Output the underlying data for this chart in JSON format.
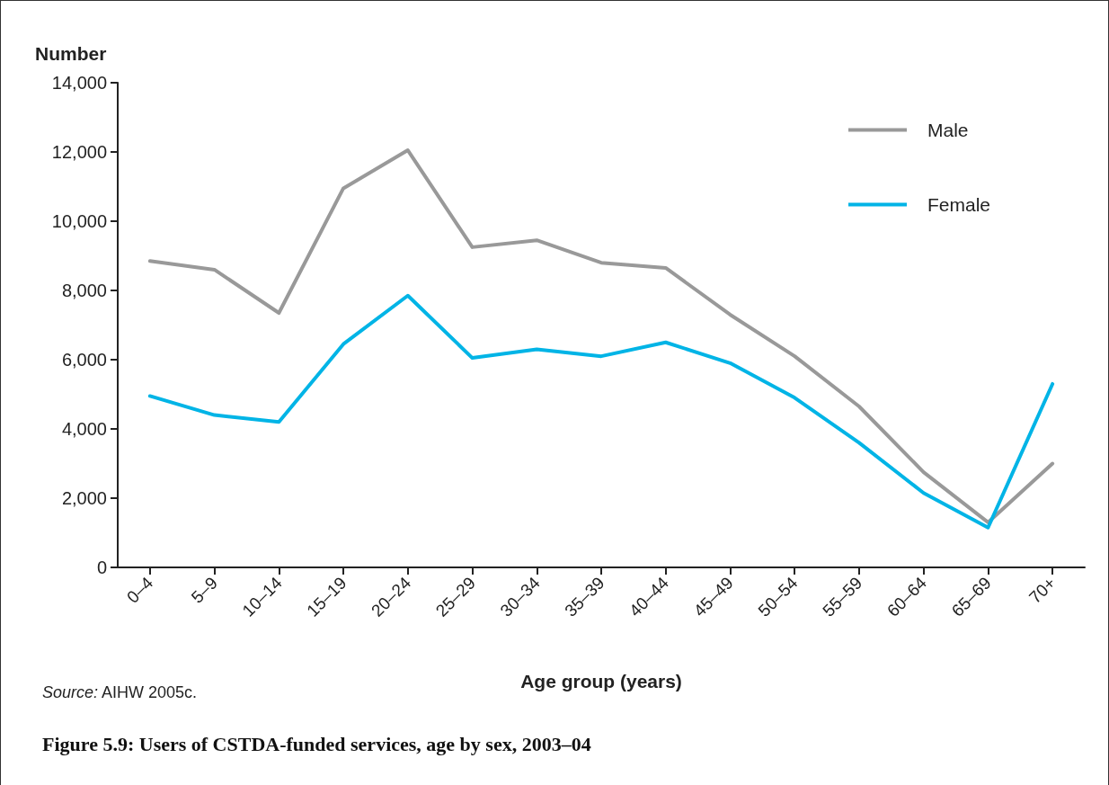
{
  "chart_data": {
    "type": "line",
    "title": "Figure 5.9: Users of CSTDA-funded services, age by sex, 2003–04",
    "xlabel": "Age group (years)",
    "ylabel": "Number",
    "annotations": [
      "Source: AIHW 2005c."
    ],
    "categories": [
      "0–4",
      "5–9",
      "10–14",
      "15–19",
      "20–24",
      "25–29",
      "30–34",
      "35–39",
      "40–44",
      "45–49",
      "50–54",
      "55–59",
      "60–64",
      "65–69",
      "70+"
    ],
    "series": [
      {
        "name": "Male",
        "color": "#999999",
        "values": [
          8850,
          8600,
          7350,
          10950,
          12050,
          9250,
          9450,
          8800,
          8650,
          7300,
          6100,
          4650,
          2750,
          1300,
          3000
        ]
      },
      {
        "name": "Female",
        "color": "#00b4e6",
        "values": [
          4950,
          4400,
          4200,
          6450,
          7850,
          6050,
          6300,
          6100,
          6500,
          5900,
          4900,
          3600,
          2150,
          1150,
          5300
        ]
      }
    ],
    "ylim": [
      0,
      14000
    ],
    "yticks": [
      0,
      {
        "value": 2000,
        "label": "2,000"
      },
      {
        "value": 4000,
        "label": "4,000"
      },
      {
        "value": 6000,
        "label": "6,000"
      },
      {
        "value": 8000,
        "label": "8,000"
      },
      {
        "value": 10000,
        "label": "10,000"
      },
      {
        "value": 12000,
        "label": "12,000"
      },
      {
        "value": 14000,
        "label": "14,000"
      }
    ],
    "grid": false,
    "legend": "top right",
    "marker": "none",
    "line_style": "solid"
  }
}
